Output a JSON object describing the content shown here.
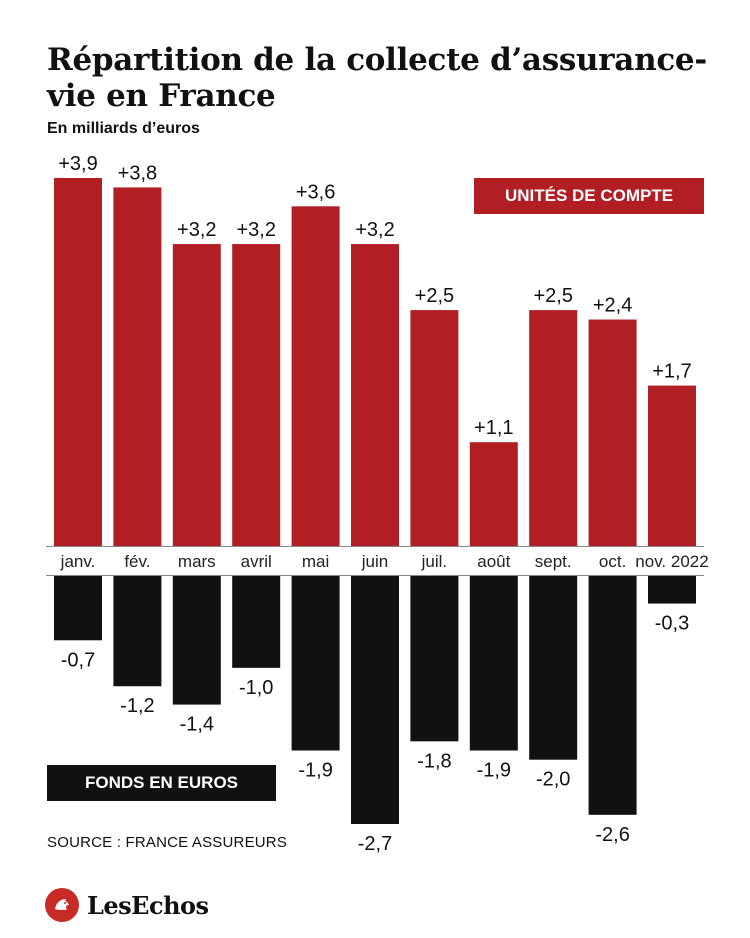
{
  "title": "Répartition de la collecte d’assurance-vie en France",
  "subtitle": "En milliards d’euros",
  "source": "SOURCE : FRANCE ASSUREURS",
  "logo": "LesEchos",
  "colors": {
    "uc": "#b11f24",
    "euros": "#111111"
  },
  "chart_data": {
    "type": "bar",
    "title": "Répartition de la collecte d’assurance-vie en France",
    "subtitle": "En milliards d’euros",
    "categories": [
      "janv.",
      "fév.",
      "mars",
      "avril",
      "mai",
      "juin",
      "juil.",
      "août",
      "sept.",
      "oct.",
      "nov. 2022"
    ],
    "series": [
      {
        "name": "UNITÉS DE COMPTE",
        "values": [
          3.9,
          3.8,
          3.2,
          3.2,
          3.6,
          3.2,
          2.5,
          1.1,
          2.5,
          2.4,
          1.7
        ],
        "labels": [
          "+3,9",
          "+3,8",
          "+3,2",
          "+3,2",
          "+3,6",
          "+3,2",
          "+2,5",
          "+1,1",
          "+2,5",
          "+2,4",
          "+1,7"
        ],
        "color": "#b11f24"
      },
      {
        "name": "FONDS EN EUROS",
        "values": [
          -0.7,
          -1.2,
          -1.4,
          -1.0,
          -1.9,
          -2.7,
          -1.8,
          -1.9,
          -2.0,
          -2.6,
          -0.3
        ],
        "labels": [
          "-0,7",
          "-1,2",
          "-1,4",
          "-1,0",
          "-1,9",
          "-2,7",
          "-1,8",
          "-1,9",
          "-2,0",
          "-2,6",
          "-0,3"
        ],
        "color": "#111111"
      }
    ],
    "grid": false,
    "legend": "inline-labels"
  }
}
